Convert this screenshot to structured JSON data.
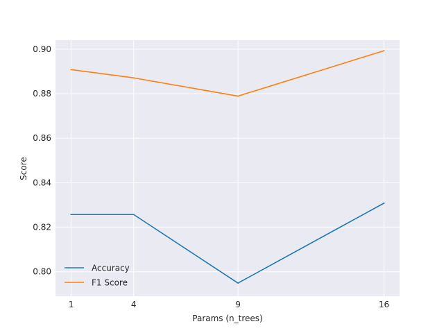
{
  "chart_data": {
    "type": "line",
    "x": [
      1,
      4,
      9,
      16
    ],
    "xticks": [
      1,
      4,
      9,
      16
    ],
    "xlabel": "Params (n_trees)",
    "ylabel": "Score",
    "ylim": [
      0.789,
      0.904
    ],
    "xlim": [
      0.25,
      16.75
    ],
    "yticks": [
      "0.80",
      "0.82",
      "0.84",
      "0.86",
      "0.88",
      "0.90"
    ],
    "grid": true,
    "legend_position": "lower-left",
    "background": "#eaeaf2",
    "series": [
      {
        "name": "Accuracy",
        "color": "#1f77b4",
        "values": [
          0.8257,
          0.8257,
          0.7949,
          0.8308
        ]
      },
      {
        "name": "F1 Score",
        "color": "#ff7f0e",
        "values": [
          0.8908,
          0.8871,
          0.8789,
          0.8993
        ]
      }
    ]
  }
}
